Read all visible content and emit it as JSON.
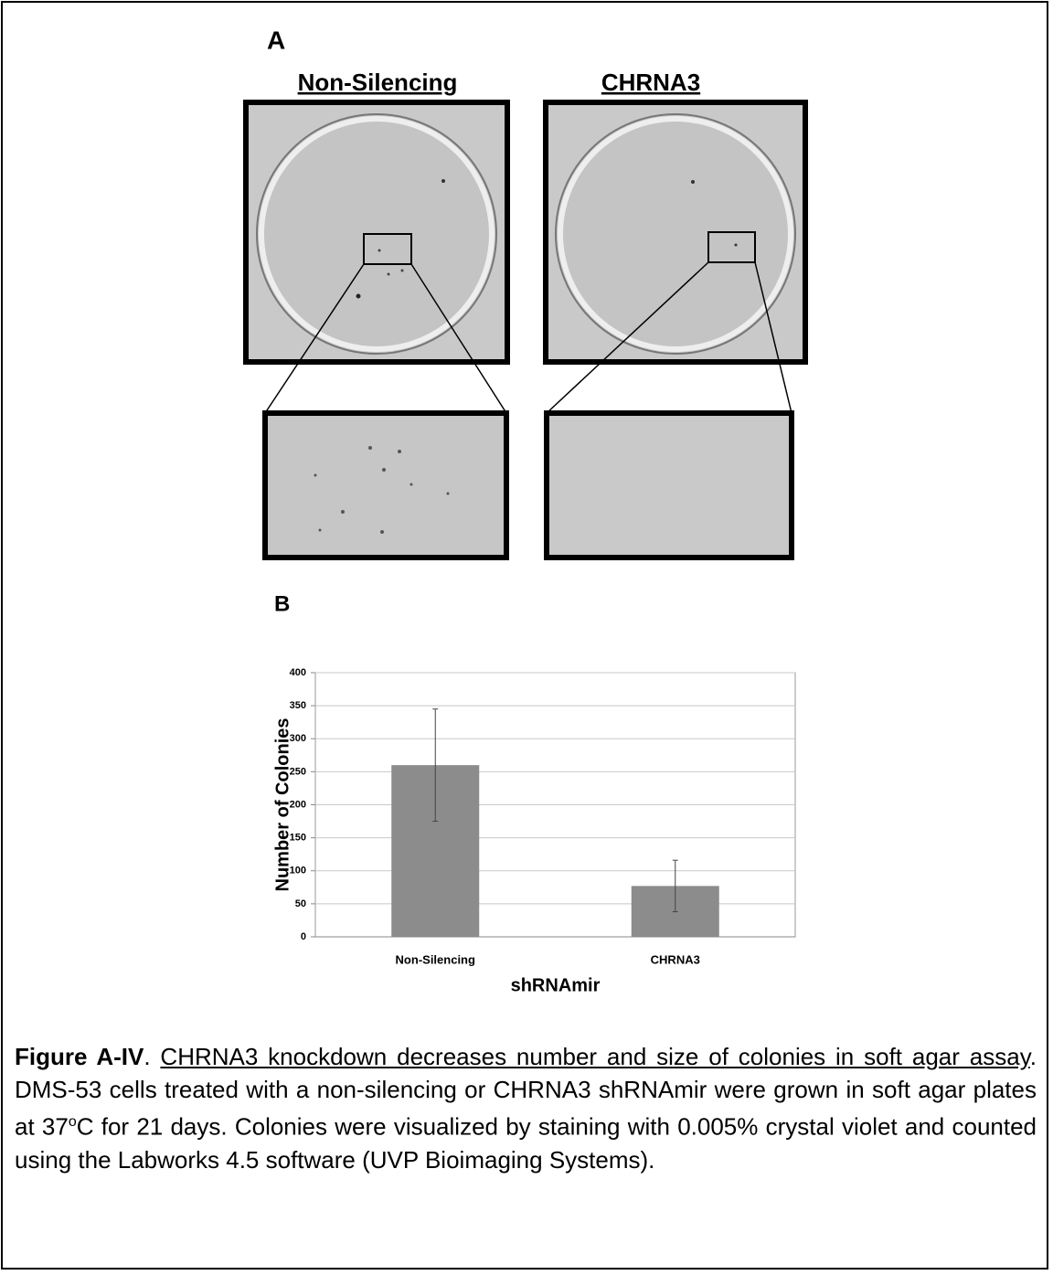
{
  "panel_a": {
    "label": "A",
    "labels": [
      "Non-Silencing",
      "CHRNA3"
    ]
  },
  "panel_b": {
    "label": "B"
  },
  "chart_data": {
    "type": "bar",
    "categories": [
      "Non-Silencing",
      "CHRNA3"
    ],
    "values": [
      260,
      77
    ],
    "errors": [
      85,
      39
    ],
    "color": "#8c8c8c",
    "ylim": [
      0,
      400
    ],
    "yticks": [
      0,
      50,
      100,
      150,
      200,
      250,
      300,
      350,
      400
    ],
    "grid": true,
    "xlabel": "shRNAmir",
    "ylabel": "Number of Colonies"
  },
  "caption": {
    "title": "Figure A-IV",
    "sep": ".  ",
    "heading": "CHRNA3 knockdown decreases number and size of colonies in soft agar assay",
    "body1": ". DMS-53 cells treated with a non-silencing or CHRNA3 shRNAmir were grown in soft agar plates at 37",
    "sup": "o",
    "body2": "C for 21 days.  Colonies were visualized by staining with 0.005% crystal violet and counted using the Labworks 4.5 software (UVP Bioimaging Systems)."
  }
}
